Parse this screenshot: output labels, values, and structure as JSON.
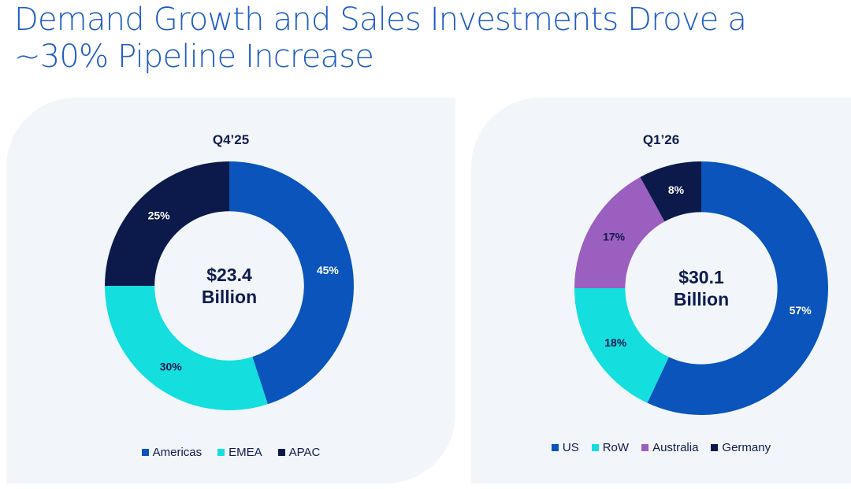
{
  "title": "Demand Growth and Sales Investments Drove a ~30% Pipeline Increase",
  "chart_data": [
    {
      "type": "pie",
      "title": "Q4’25",
      "center_label": [
        "$23.4",
        "Billion"
      ],
      "categories": [
        "Americas",
        "EMEA",
        "APAC"
      ],
      "values": [
        45,
        30,
        25
      ],
      "labels": [
        "45%",
        "30%",
        "25%"
      ],
      "colors": [
        "#0a54bb",
        "#14dede",
        "#0b1a4a"
      ],
      "label_colors": [
        "#ffffff",
        "#0e1b4d",
        "#ffffff"
      ],
      "legend_position": "bottom"
    },
    {
      "type": "pie",
      "title": "Q1’26",
      "center_label": [
        "$30.1",
        "Billion"
      ],
      "categories": [
        "US",
        "RoW",
        "Australia",
        "Germany"
      ],
      "values": [
        57,
        18,
        17,
        8
      ],
      "labels": [
        "57%",
        "18%",
        "17%",
        "8%"
      ],
      "colors": [
        "#0a54bb",
        "#14dede",
        "#9b5fc0",
        "#0b1a4a"
      ],
      "label_colors": [
        "#ffffff",
        "#0e1b4d",
        "#0e1b4d",
        "#ffffff"
      ],
      "legend_position": "bottom"
    }
  ]
}
